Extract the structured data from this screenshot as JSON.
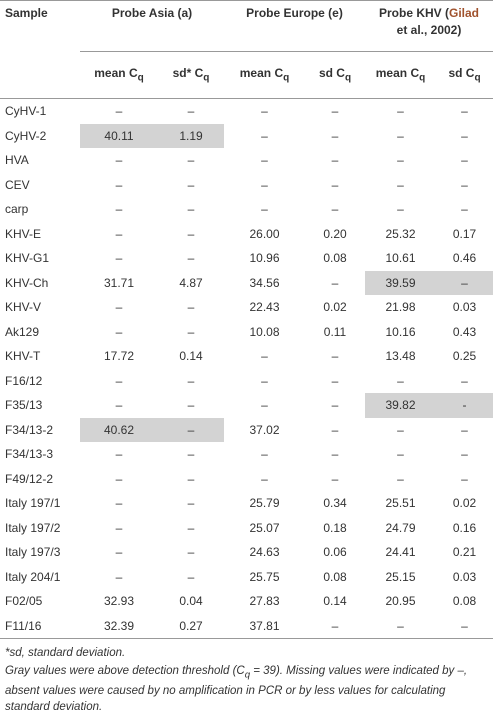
{
  "table": {
    "groups": [
      {
        "text": "Sample"
      },
      {
        "text": "Probe Asia (a)"
      },
      {
        "text": "Probe Europe (e)"
      },
      {
        "text": "Probe KHV (",
        "cite": "Gilad",
        "after": "et al., 2002)"
      }
    ],
    "subheaders": [
      {
        "main": "mean C",
        "sub": "q"
      },
      {
        "main": "sd* C",
        "sub": "q"
      },
      {
        "main": "mean C",
        "sub": "q"
      },
      {
        "main": "sd C",
        "sub": "q"
      },
      {
        "main": "mean C",
        "sub": "q"
      },
      {
        "main": "sd C",
        "sub": "q"
      }
    ],
    "rows": [
      [
        "CyHV-1",
        "–",
        "–",
        "–",
        "–",
        "–",
        "–"
      ],
      [
        "CyHV-2",
        "40.11",
        "1.19",
        "–",
        "–",
        "–",
        "–"
      ],
      [
        "HVA",
        "–",
        "–",
        "–",
        "–",
        "–",
        "–"
      ],
      [
        "CEV",
        "–",
        "–",
        "–",
        "–",
        "–",
        "–"
      ],
      [
        "carp",
        "–",
        "–",
        "–",
        "–",
        "–",
        "–"
      ],
      [
        "KHV-E",
        "–",
        "–",
        "26.00",
        "0.20",
        "25.32",
        "0.17"
      ],
      [
        "KHV-G1",
        "–",
        "–",
        "10.96",
        "0.08",
        "10.61",
        "0.46"
      ],
      [
        "KHV-Ch",
        "31.71",
        "4.87",
        "34.56",
        "–",
        "39.59",
        "–"
      ],
      [
        "KHV-V",
        "–",
        "–",
        "22.43",
        "0.02",
        "21.98",
        "0.03"
      ],
      [
        "Ak129",
        "–",
        "–",
        "10.08",
        "0.11",
        "10.16",
        "0.43"
      ],
      [
        "KHV-T",
        "17.72",
        "0.14",
        "–",
        "–",
        "13.48",
        "0.25"
      ],
      [
        "F16/12",
        "–",
        "–",
        "–",
        "–",
        "–",
        "–"
      ],
      [
        "F35/13",
        "–",
        "–",
        "–",
        "–",
        "39.82",
        "-"
      ],
      [
        "F34/13-2",
        "40.62",
        "–",
        "37.02",
        "–",
        "–",
        "–"
      ],
      [
        "F34/13-3",
        "–",
        "–",
        "–",
        "–",
        "–",
        "–"
      ],
      [
        "F49/12-2",
        "–",
        "–",
        "–",
        "–",
        "–",
        "–"
      ],
      [
        "Italy 197/1",
        "–",
        "–",
        "25.79",
        "0.34",
        "25.51",
        "0.02"
      ],
      [
        "Italy 197/2",
        "–",
        "–",
        "25.07",
        "0.18",
        "24.79",
        "0.16"
      ],
      [
        "Italy 197/3",
        "–",
        "–",
        "24.63",
        "0.06",
        "24.41",
        "0.21"
      ],
      [
        "Italy 204/1",
        "–",
        "–",
        "25.75",
        "0.08",
        "25.15",
        "0.03"
      ],
      [
        "F02/05",
        "32.93",
        "0.04",
        "27.83",
        "0.14",
        "20.95",
        "0.08"
      ],
      [
        "F11/16",
        "32.39",
        "0.27",
        "37.81",
        "–",
        "–",
        "–"
      ]
    ],
    "highlight": [
      [
        1,
        1
      ],
      [
        1,
        2
      ],
      [
        7,
        5
      ],
      [
        7,
        6
      ],
      [
        12,
        5
      ],
      [
        12,
        6
      ],
      [
        13,
        1
      ],
      [
        13,
        2
      ]
    ],
    "notes": [
      {
        "text": "*sd, standard deviation."
      },
      {
        "text": "Gray values were above detection threshold (C",
        "sub": "q",
        "after": " = 39). Missing values were indicated by –, absent values were caused by no amplification in PCR or by less values for calculating standard deviation."
      }
    ]
  }
}
